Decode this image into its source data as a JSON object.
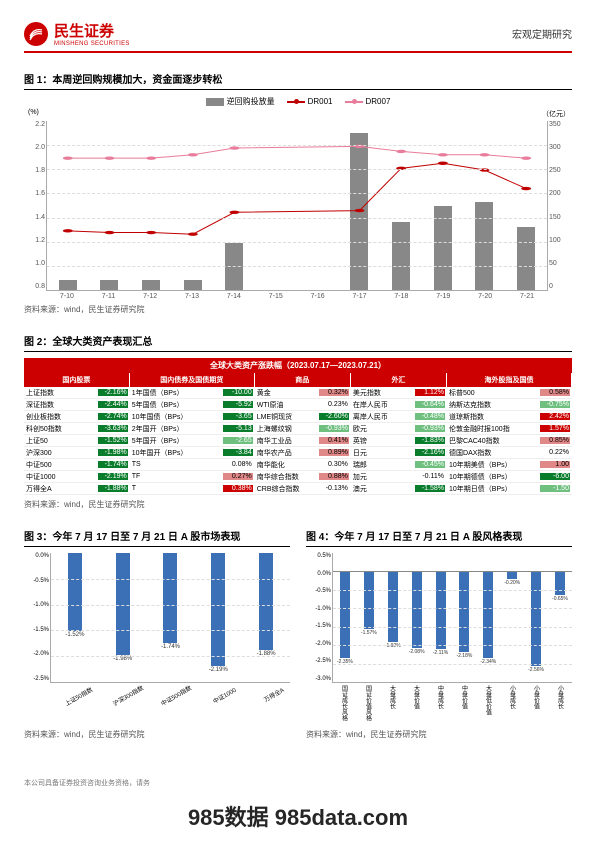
{
  "header": {
    "logo_cn": "民生证券",
    "logo_en": "MINSHENG SECURITIES",
    "right": "宏观定期研究"
  },
  "fig1": {
    "title": "图 1：本周逆回购规模加大，资金面逐步转松",
    "legend": {
      "bar": "逆回购投放量",
      "l1": "DR001",
      "l2": "DR007"
    },
    "unit_left": "(%)",
    "unit_right": "（亿元）",
    "y_left": [
      "2.2",
      "2.0",
      "1.8",
      "1.6",
      "1.4",
      "1.2",
      "1.0",
      "0.8"
    ],
    "y_right": [
      "350",
      "300",
      "250",
      "200",
      "150",
      "100",
      "50",
      "0"
    ],
    "x": [
      "7-10",
      "7-11",
      "7-12",
      "7-13",
      "7-14",
      "7-15",
      "7-16",
      "7-17",
      "7-18",
      "7-19",
      "7-20",
      "7-21"
    ],
    "bars_pct": [
      6,
      6,
      6,
      6,
      28,
      0,
      0,
      93,
      40,
      50,
      52,
      37
    ],
    "l1_color": "#c00000",
    "l2_color": "#e87c9a",
    "l1_pts": [
      35,
      34,
      34,
      33,
      46,
      0,
      0,
      47,
      72,
      75,
      71,
      60
    ],
    "l2_pts": [
      78,
      78,
      78,
      80,
      84,
      0,
      0,
      85,
      82,
      80,
      80,
      78
    ],
    "source": "资料来源：wind，民生证券研究院"
  },
  "fig2": {
    "title": "图 2：全球大类资产表现汇总",
    "main_header": "全球大类资产涨跌幅（2023.07.17—2023.07.21）",
    "cols": [
      "国内股票",
      "国内债券及国债期货",
      "商品",
      "外汇",
      "海外股指及国债"
    ],
    "data": [
      [
        {
          "l": "上证指数",
          "v": "-2.16%",
          "c": "neg"
        },
        {
          "l": "深证指数",
          "v": "-2.44%",
          "c": "neg"
        },
        {
          "l": "创业板指数",
          "v": "-2.74%",
          "c": "neg"
        },
        {
          "l": "科创50指数",
          "v": "-3.63%",
          "c": "neg"
        },
        {
          "l": "上证50",
          "v": "-1.52%",
          "c": "neg"
        },
        {
          "l": "沪深300",
          "v": "-1.98%",
          "c": "neg"
        },
        {
          "l": "中证500",
          "v": "-1.74%",
          "c": "neg"
        },
        {
          "l": "中证1000",
          "v": "-2.19%",
          "c": "neg"
        },
        {
          "l": "万得全A",
          "v": "-1.88%",
          "c": "neg"
        }
      ],
      [
        {
          "l": "1年国债（BPs）",
          "v": "-10.00",
          "c": "neg"
        },
        {
          "l": "5年国债（BPs）",
          "v": "-5.92",
          "c": "neg"
        },
        {
          "l": "10年国债（BPs）",
          "v": "-3.65",
          "c": "neg"
        },
        {
          "l": "2年国开（BPs）",
          "v": "-5.13",
          "c": "neg"
        },
        {
          "l": "5年国开（BPs）",
          "v": "-2.65",
          "c": "neg-light"
        },
        {
          "l": "10年国开（BPs）",
          "v": "-3.84",
          "c": "neg"
        },
        {
          "l": "TS",
          "v": "0.08%",
          "c": "neu"
        },
        {
          "l": "TF",
          "v": "0.27%",
          "c": "pos-light"
        },
        {
          "l": "T",
          "v": "0.38%",
          "c": "pos"
        }
      ],
      [
        {
          "l": "黄金",
          "v": "0.32%",
          "c": "pos-light"
        },
        {
          "l": "WTI原油",
          "v": "0.23%",
          "c": "neu"
        },
        {
          "l": "LME铜现货",
          "v": "-2.60%",
          "c": "neg"
        },
        {
          "l": "上海螺纹钢",
          "v": "-0.93%",
          "c": "neg-light"
        },
        {
          "l": "南华工业品",
          "v": "0.41%",
          "c": "pos-light"
        },
        {
          "l": "南华农产品",
          "v": "0.89%",
          "c": "pos-light"
        },
        {
          "l": "南华能化",
          "v": "0.30%",
          "c": "neu"
        },
        {
          "l": "南华综合指数",
          "v": "0.88%",
          "c": "pos-light"
        },
        {
          "l": "CRB综合指数",
          "v": "-0.13%",
          "c": "neu"
        }
      ],
      [
        {
          "l": "美元指数",
          "v": "1.12%",
          "c": "pos"
        },
        {
          "l": "在岸人民币",
          "v": "-0.64%",
          "c": "neg-light"
        },
        {
          "l": "离岸人民币",
          "v": "-0.48%",
          "c": "neg-light"
        },
        {
          "l": "欧元",
          "v": "-0.93%",
          "c": "neg-light"
        },
        {
          "l": "英镑",
          "v": "-1.83%",
          "c": "neg"
        },
        {
          "l": "日元",
          "v": "-2.16%",
          "c": "neg"
        },
        {
          "l": "瑞郎",
          "v": "-0.45%",
          "c": "neg-light"
        },
        {
          "l": "加元",
          "v": "-0.11%",
          "c": "neu"
        },
        {
          "l": "澳元",
          "v": "-1.58%",
          "c": "neg"
        }
      ],
      [
        {
          "l": "标普500",
          "v": "0.58%",
          "c": "pos-light"
        },
        {
          "l": "纳斯达克指数",
          "v": "-0.75%",
          "c": "neg-light"
        },
        {
          "l": "道琼斯指数",
          "v": "2.42%",
          "c": "pos"
        },
        {
          "l": "伦敦金融时报100指",
          "v": "1.57%",
          "c": "pos"
        },
        {
          "l": "巴黎CAC40指数",
          "v": "0.85%",
          "c": "pos-light"
        },
        {
          "l": "德国DAX指数",
          "v": "0.22%",
          "c": "neu"
        },
        {
          "l": "10年期美债（BPs）",
          "v": "1.00",
          "c": "pos-light"
        },
        {
          "l": "10年期德债（BPs）",
          "v": "-6.00",
          "c": "neg"
        },
        {
          "l": "10年期日债（BPs）",
          "v": "-1.50",
          "c": "neg-light"
        }
      ]
    ],
    "source": "资料来源：wind，民生证券研究院"
  },
  "fig3": {
    "title": "图 3：今年 7 月 17 日至 7 月 21 日 A 股市场表现",
    "y": [
      "0.0%",
      "-0.5%",
      "-1.0%",
      "-1.5%",
      "-2.0%",
      "-2.5%"
    ],
    "x": [
      "上证50指数",
      "沪深300指数",
      "中证500指数",
      "中证1000",
      "万得全A"
    ],
    "vals": [
      -1.52,
      -1.98,
      -1.74,
      -2.19,
      -1.88
    ],
    "labels": [
      "-1.52%",
      "-1.98%",
      "-1.74%",
      "-2.19%",
      "-1.88%"
    ],
    "source": "资料来源：wind，民生证券研究院"
  },
  "fig4": {
    "title": "图 4：今年 7 月 17 日至 7 月 21 日 A 股风格表现",
    "y": [
      "0.5%",
      "0.0%",
      "-0.5%",
      "-1.0%",
      "-1.5%",
      "-2.0%",
      "-2.5%",
      "-3.0%"
    ],
    "x": [
      "国证成长风格",
      "国证价值风格",
      "大盘成长",
      "大盘价值",
      "中盘成长",
      "中盘价值",
      "大盘低价值",
      "小盘成长",
      "小盘价值",
      "小盘成长",
      "中盘成长",
      "中盘价值"
    ],
    "vals": [
      -2.35,
      -1.57,
      -1.92,
      -2.08,
      -2.11,
      -2.18,
      -2.34,
      -0.2,
      -2.56,
      -0.65,
      -2.56,
      -0.65
    ],
    "labels": [
      "-2.35%",
      "-1.57%",
      "-1.92%",
      "-2.08%",
      "-2.11%",
      "-2.18%",
      "-2.34%",
      "-0.20%",
      "-2.56%",
      "-0.65%",
      "",
      ""
    ],
    "show_count": 10,
    "source": "资料来源：wind，民生证券研究院"
  },
  "footer": "本公司具备证券投资咨询业务资格，请务",
  "watermark": "985数据 985data.com"
}
